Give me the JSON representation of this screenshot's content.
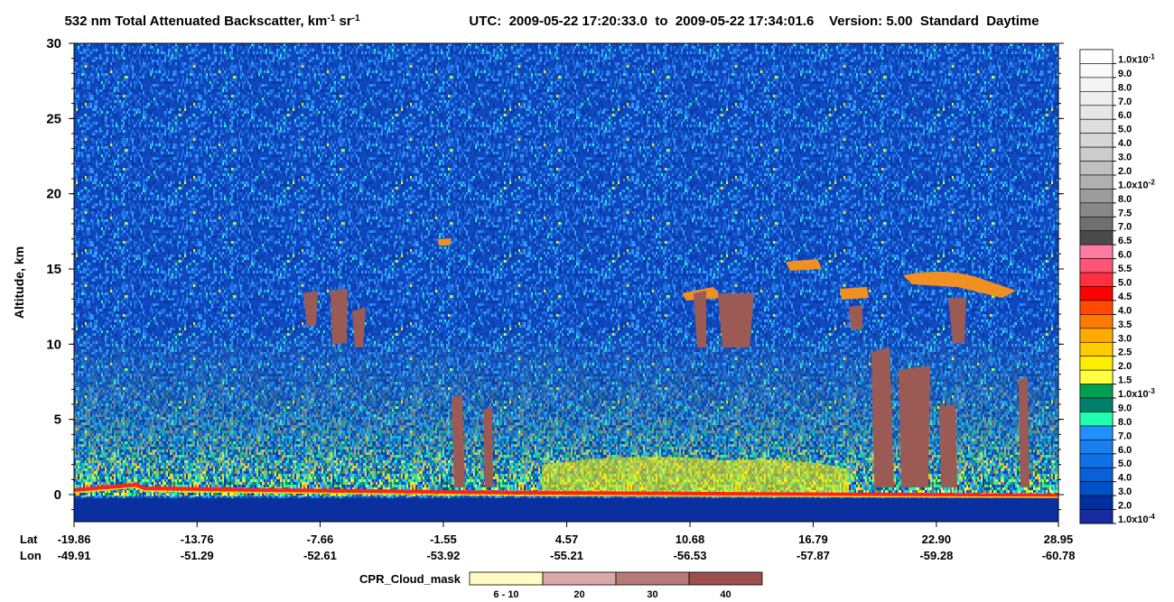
{
  "chart_data": {
    "type": "heatmap",
    "title_parts": [
      {
        "text": "532 nm Total Attenuated Backscatter, km"
      },
      {
        "sup": "-1"
      },
      {
        "text": " sr"
      },
      {
        "sup": "-1"
      }
    ],
    "subtitle": "UTC:  2009-05-22 17:20:33.0  to  2009-05-22 17:34:01.6    Version: 5.00  Standard  Daytime",
    "ylabel": "Altitude, km",
    "ylim": [
      -1.8,
      30
    ],
    "yticks": [
      0,
      5,
      10,
      15,
      20,
      25,
      30
    ],
    "xlim": [
      -19.86,
      28.95
    ],
    "x_row_labels": [
      "Lat",
      "Lon"
    ],
    "xticks": [
      -19.86,
      -13.76,
      -7.66,
      -1.55,
      4.57,
      10.68,
      16.79,
      {
        "value": 22.9,
        "label": "22.90"
      },
      28.95
    ],
    "lon_ticks": [
      -49.91,
      -51.29,
      -52.61,
      -53.92,
      -55.21,
      -56.53,
      -57.87,
      -59.28,
      -60.78
    ],
    "colorbar": [
      {
        "label": "1.0x10",
        "sup": "-1",
        "color": "#ffffff"
      },
      {
        "label": "9.0",
        "color": "#fafafa"
      },
      {
        "label": "8.0",
        "color": "#f4f4f4"
      },
      {
        "label": "7.0",
        "color": "#eeeeee"
      },
      {
        "label": "6.0",
        "color": "#e6e6e6"
      },
      {
        "label": "5.0",
        "color": "#dedede"
      },
      {
        "label": "4.0",
        "color": "#d6d6d6"
      },
      {
        "label": "3.0",
        "color": "#cccccc"
      },
      {
        "label": "2.0",
        "color": "#c0c0c0"
      },
      {
        "label": "1.0x10",
        "sup": "-2",
        "color": "#b0b0b0"
      },
      {
        "label": "8.0",
        "color": "#9c9c9c"
      },
      {
        "label": "7.5",
        "color": "#888888"
      },
      {
        "label": "7.0",
        "color": "#707070"
      },
      {
        "label": "6.5",
        "color": "#4a4a4a"
      },
      {
        "label": "6.0",
        "color": "#ff7ca0"
      },
      {
        "label": "5.5",
        "color": "#ff5575"
      },
      {
        "label": "5.0",
        "color": "#ff3040"
      },
      {
        "label": "4.5",
        "color": "#ff0000"
      },
      {
        "label": "4.0",
        "color": "#ff4a00"
      },
      {
        "label": "3.5",
        "color": "#ff7a00"
      },
      {
        "label": "3.0",
        "color": "#ffaa00"
      },
      {
        "label": "2.5",
        "color": "#ffcc00"
      },
      {
        "label": "2.0",
        "color": "#ffee00"
      },
      {
        "label": "1.5",
        "color": "#ffff40"
      },
      {
        "label": "1.0x10",
        "sup": "-3",
        "color": "#00a050"
      },
      {
        "label": "9.0",
        "color": "#00806a"
      },
      {
        "label": "8.0",
        "color": "#20ffb0"
      },
      {
        "label": "7.0",
        "color": "#2090ff"
      },
      {
        "label": "6.0",
        "color": "#1a80f0"
      },
      {
        "label": "5.0",
        "color": "#1070e8"
      },
      {
        "label": "4.0",
        "color": "#0a60d8"
      },
      {
        "label": "3.0",
        "color": "#0050c8"
      },
      {
        "label": "2.0",
        "color": "#0030a0"
      },
      {
        "label": "1.0x10",
        "sup": "-4",
        "color": "#1a2aa0"
      }
    ],
    "cloud_mask": {
      "title": "CPR_Cloud_mask",
      "bins": [
        {
          "label": "6 - 10",
          "color": "#fefcc0"
        },
        {
          "label": "20",
          "color": "#d9a9a9"
        },
        {
          "label": "30",
          "color": "#b87a78"
        },
        {
          "label": "40",
          "color": "#9a4f4b"
        }
      ]
    }
  }
}
